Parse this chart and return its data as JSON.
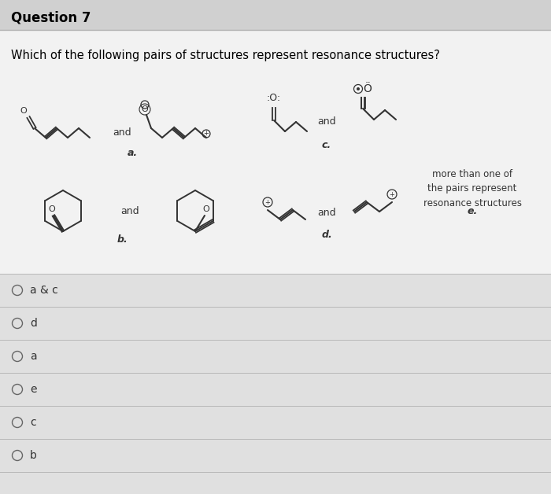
{
  "title": "Question 7",
  "question": "Which of the following pairs of structures represent resonance structures?",
  "bg_color": "#e8e8e8",
  "header_bg": "#d0d0d0",
  "content_bg": "#f0f0f0",
  "answer_bg": "#e0e0e0",
  "answer_options": [
    "a & c",
    "d",
    "a",
    "e",
    "c",
    "b"
  ],
  "label_a": "a.",
  "label_b": "b.",
  "label_c": "c.",
  "label_d": "d.",
  "label_e": "e.",
  "and_text": "and",
  "more_text": "more than one of\nthe pairs represent\nresonance structures"
}
